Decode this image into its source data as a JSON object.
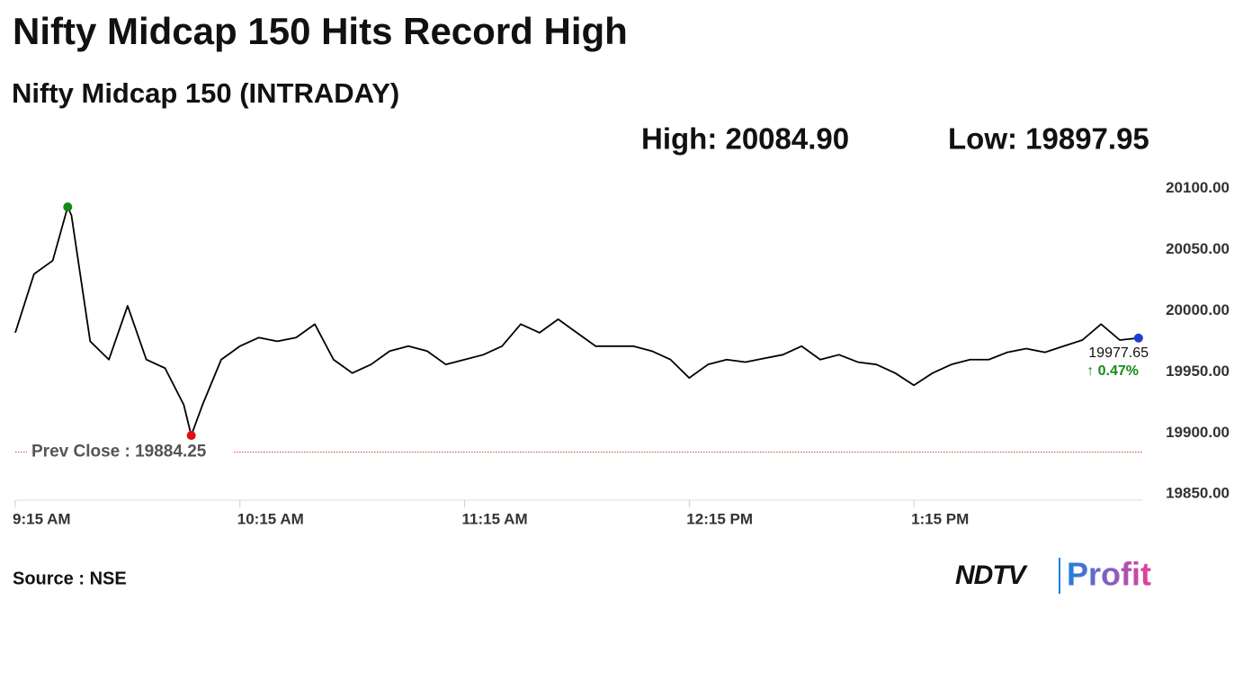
{
  "chart_data": {
    "type": "line",
    "title": "Nifty Midcap 150 Hits Record High",
    "subtitle": "Nifty Midcap 150 (INTRADAY)",
    "high": {
      "label": "High: 20084.90",
      "value": 20084.9,
      "x": 569
    },
    "low": {
      "label": "Low: 19897.95",
      "value": 19897.95,
      "x": 602
    },
    "reference_line": {
      "label": "Prev Close : 19884.25",
      "value": 19884.25
    },
    "change": {
      "label": "↑ 0.47%",
      "value": 0.47
    },
    "x": [
      555,
      560,
      565,
      569,
      570,
      575,
      580,
      585,
      590,
      595,
      600,
      602,
      605,
      610,
      615,
      620,
      625,
      630,
      635,
      640,
      645,
      650,
      655,
      660,
      665,
      670,
      675,
      680,
      685,
      690,
      695,
      700,
      705,
      710,
      715,
      720,
      725,
      730,
      735,
      740,
      745,
      750,
      755,
      760,
      765,
      770,
      775,
      780,
      785,
      790,
      795,
      800,
      805,
      810,
      815,
      820,
      825,
      830,
      835,
      840,
      845,
      850,
      855
    ],
    "series": [
      {
        "color": "#000000",
        "values": [
          19982,
          20030,
          20041,
          20084.9,
          20078,
          19975,
          19960,
          20004,
          19960,
          19953,
          19923,
          19897.95,
          19923,
          19960,
          19971,
          19978,
          19975,
          19978,
          19989,
          19960,
          19949,
          19956,
          19967,
          19971,
          19967,
          19956,
          19960,
          19964,
          19971,
          19989,
          19982,
          19993,
          19982,
          19971,
          19971,
          19971,
          19967,
          19960,
          19945,
          19956,
          19960,
          19958,
          19961,
          19964,
          19971,
          19960,
          19964,
          19958,
          19956,
          19949,
          19939,
          19949,
          19956,
          19960,
          19960,
          19966,
          19969,
          19966,
          19971,
          19976,
          19989,
          19976,
          19977.65
        ]
      }
    ],
    "xlim": [
      555,
      856
    ],
    "xticks": [
      {
        "value": 555,
        "label": "9:15 AM"
      },
      {
        "value": 615,
        "label": "10:15 AM"
      },
      {
        "value": 675,
        "label": "11:15 AM"
      },
      {
        "value": 735,
        "label": "12:15 PM"
      },
      {
        "value": 795,
        "label": "1:15 PM"
      }
    ],
    "ylim": [
      19845,
      20107
    ],
    "yticks": [
      {
        "value": 19850,
        "label": "19850.00"
      },
      {
        "value": 19900,
        "label": "19900.00"
      },
      {
        "value": 19950,
        "label": "19950.00"
      },
      {
        "value": 20000,
        "label": "20000.00"
      },
      {
        "value": 20050,
        "label": "20050.00"
      },
      {
        "value": 20100,
        "label": "20100.00"
      }
    ],
    "grid": false,
    "source": "Source : NSE",
    "logo": {
      "brand": "NDTV",
      "product": "Profit"
    }
  }
}
